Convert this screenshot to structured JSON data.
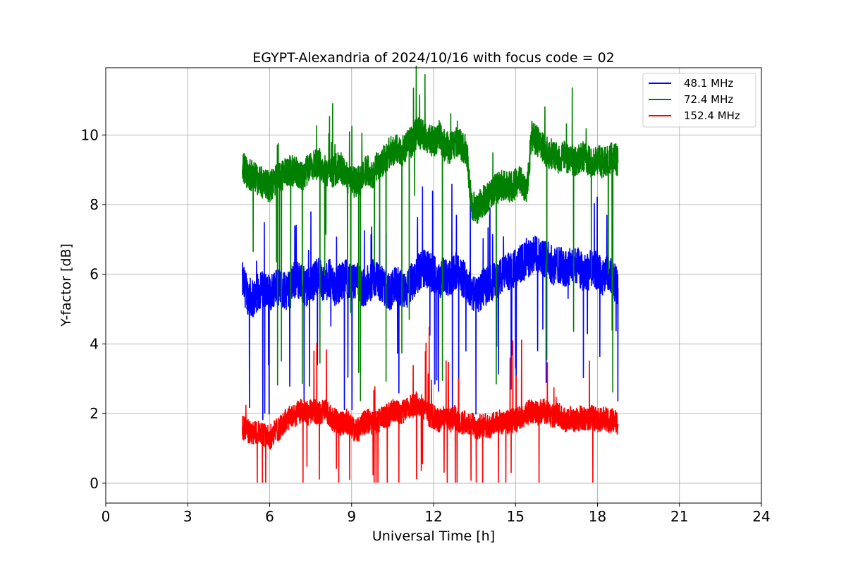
{
  "chart_data": {
    "type": "line",
    "title": "EGYPT-Alexandria of 2024/10/16 with focus code = 02",
    "xlabel": "Universal Time [h]",
    "ylabel": "Y-factor [dB]",
    "xlim": [
      0,
      24
    ],
    "ylim": [
      -0.57,
      11.93
    ],
    "xticks": [
      0,
      3,
      6,
      9,
      12,
      15,
      18,
      21,
      24
    ],
    "xtick_labels": [
      "0",
      "3",
      "6",
      "9",
      "12",
      "15",
      "18",
      "21",
      "24"
    ],
    "yticks": [
      0,
      2,
      4,
      6,
      8,
      10
    ],
    "ytick_labels": [
      "0",
      "2",
      "4",
      "6",
      "8",
      "10"
    ],
    "grid": true,
    "legend_position": "top-right",
    "series": [
      {
        "name": "48.1 MHz",
        "color": "#0000ff",
        "x": [
          5.0,
          5.2,
          5.4,
          5.6,
          5.8,
          6.0,
          6.2,
          6.4,
          6.6,
          6.8,
          7.0,
          7.2,
          7.4,
          7.6,
          7.8,
          8.0,
          8.2,
          8.4,
          8.6,
          8.8,
          9.0,
          9.2,
          9.4,
          9.6,
          9.8,
          10.0,
          10.2,
          10.4,
          10.6,
          10.8,
          11.0,
          11.2,
          11.4,
          11.6,
          11.8,
          12.0,
          12.2,
          12.4,
          12.6,
          12.8,
          13.0,
          13.2,
          13.4,
          13.6,
          13.8,
          14.0,
          14.2,
          14.4,
          14.6,
          14.8,
          15.0,
          15.2,
          15.4,
          15.6,
          15.8,
          16.0,
          16.2,
          16.4,
          16.6,
          16.8,
          17.0,
          17.2,
          17.4,
          17.6,
          17.8,
          18.0,
          18.2,
          18.4,
          18.6,
          18.75
        ],
        "y": [
          5.8,
          5.4,
          5.3,
          5.5,
          5.6,
          5.4,
          5.7,
          5.6,
          5.5,
          5.8,
          5.9,
          5.7,
          5.6,
          5.8,
          6.0,
          5.7,
          5.9,
          5.6,
          5.8,
          5.9,
          5.7,
          5.8,
          5.6,
          5.7,
          5.9,
          5.8,
          5.6,
          5.5,
          5.7,
          5.6,
          5.5,
          5.8,
          6.0,
          6.2,
          6.1,
          6.0,
          5.8,
          6.0,
          5.9,
          6.1,
          5.9,
          5.8,
          5.5,
          5.4,
          5.6,
          5.7,
          5.8,
          5.9,
          6.0,
          6.1,
          6.2,
          6.3,
          6.4,
          6.5,
          6.6,
          6.5,
          6.4,
          6.2,
          6.3,
          6.1,
          6.2,
          6.3,
          6.1,
          6.0,
          6.2,
          6.1,
          5.9,
          6.0,
          5.8,
          5.6
        ]
      },
      {
        "name": "72.4 MHz",
        "color": "#008000",
        "x": [
          5.0,
          5.2,
          5.4,
          5.6,
          5.8,
          6.0,
          6.2,
          6.4,
          6.6,
          6.8,
          7.0,
          7.2,
          7.4,
          7.6,
          7.8,
          8.0,
          8.2,
          8.4,
          8.6,
          8.8,
          9.0,
          9.2,
          9.4,
          9.6,
          9.8,
          10.0,
          10.2,
          10.4,
          10.6,
          10.8,
          11.0,
          11.2,
          11.4,
          11.6,
          11.8,
          12.0,
          12.2,
          12.4,
          12.6,
          12.8,
          13.0,
          13.2,
          13.4,
          13.6,
          13.8,
          14.0,
          14.2,
          14.4,
          14.6,
          14.8,
          15.0,
          15.2,
          15.4,
          15.6,
          15.8,
          16.0,
          16.2,
          16.4,
          16.6,
          16.8,
          17.0,
          17.2,
          17.4,
          17.6,
          17.8,
          18.0,
          18.2,
          18.4,
          18.6,
          18.75
        ],
        "y": [
          9.1,
          8.9,
          8.8,
          8.7,
          8.6,
          8.5,
          8.7,
          8.8,
          8.9,
          9.0,
          8.9,
          8.8,
          9.0,
          9.1,
          9.2,
          9.0,
          8.9,
          9.0,
          9.1,
          8.8,
          8.7,
          8.6,
          8.9,
          9.0,
          8.9,
          9.2,
          9.3,
          9.5,
          9.6,
          9.5,
          9.7,
          9.8,
          10.1,
          10.0,
          9.9,
          9.8,
          10.0,
          9.7,
          9.6,
          9.8,
          9.7,
          9.6,
          8.0,
          7.9,
          8.1,
          8.2,
          8.4,
          8.5,
          8.6,
          8.5,
          8.6,
          8.7,
          8.4,
          10.0,
          9.8,
          9.6,
          9.5,
          9.4,
          9.3,
          9.4,
          9.3,
          9.2,
          9.4,
          9.3,
          9.2,
          9.3,
          9.2,
          9.3,
          9.4,
          9.2
        ]
      },
      {
        "name": "152.4 MHz",
        "color": "#ff0000",
        "x": [
          5.0,
          5.2,
          5.4,
          5.6,
          5.8,
          6.0,
          6.2,
          6.4,
          6.6,
          6.8,
          7.0,
          7.2,
          7.4,
          7.6,
          7.8,
          8.0,
          8.2,
          8.4,
          8.6,
          8.8,
          9.0,
          9.2,
          9.4,
          9.6,
          9.8,
          10.0,
          10.2,
          10.4,
          10.6,
          10.8,
          11.0,
          11.2,
          11.4,
          11.6,
          11.8,
          12.0,
          12.2,
          12.4,
          12.6,
          12.8,
          13.0,
          13.2,
          13.4,
          13.6,
          13.8,
          14.0,
          14.2,
          14.4,
          14.6,
          14.8,
          15.0,
          15.2,
          15.4,
          15.6,
          15.8,
          16.0,
          16.2,
          16.4,
          16.6,
          16.8,
          17.0,
          17.2,
          17.4,
          17.6,
          17.8,
          18.0,
          18.2,
          18.4,
          18.6,
          18.75
        ],
        "y": [
          1.6,
          1.5,
          1.4,
          1.5,
          1.4,
          1.3,
          1.5,
          1.6,
          1.8,
          1.9,
          2.0,
          2.1,
          2.0,
          2.1,
          2.0,
          2.1,
          1.9,
          1.8,
          1.7,
          1.8,
          1.6,
          1.5,
          1.7,
          1.8,
          1.7,
          1.8,
          1.9,
          2.0,
          2.1,
          2.0,
          2.1,
          2.2,
          2.3,
          2.2,
          2.0,
          1.9,
          1.8,
          1.9,
          1.8,
          1.9,
          1.7,
          1.8,
          1.7,
          1.6,
          1.7,
          1.6,
          1.7,
          1.8,
          1.7,
          1.8,
          1.8,
          1.9,
          2.0,
          2.1,
          2.0,
          2.1,
          2.0,
          1.9,
          2.0,
          1.8,
          1.9,
          1.8,
          1.9,
          1.8,
          1.9,
          1.8,
          1.9,
          1.8,
          1.8,
          1.7
        ]
      }
    ]
  }
}
